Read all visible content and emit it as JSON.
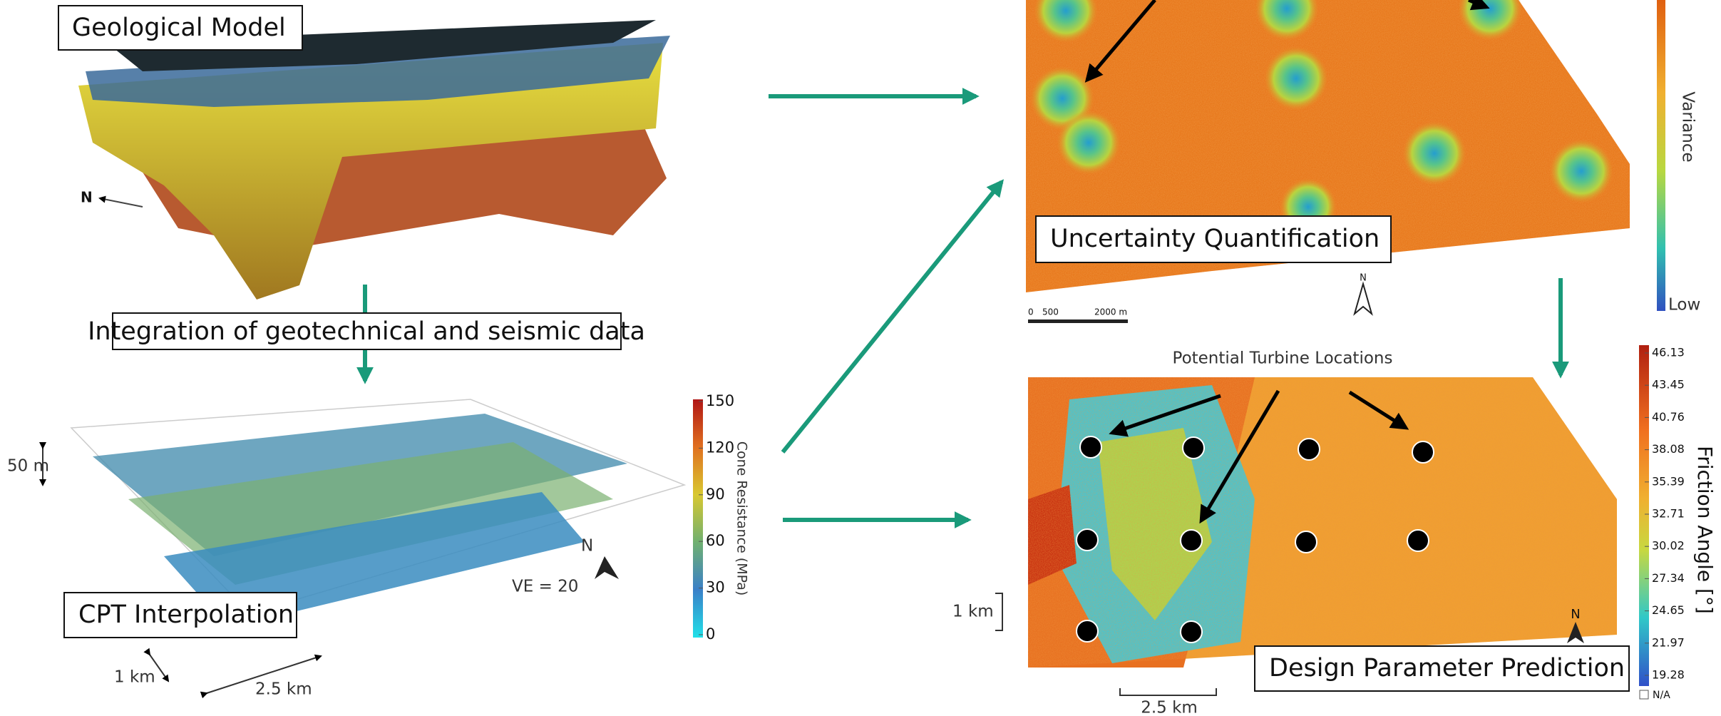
{
  "geological_model": {
    "title": "Geological Model",
    "north": "N"
  },
  "integration": "Integration of geotechnical and seismic data",
  "cpt": {
    "title": "CPT Interpolation",
    "scale_vertical": "50 m",
    "scale_1": "1 km",
    "scale_2": "2.5 km",
    "exaggeration": "VE = 20",
    "north": "N",
    "colorbar": {
      "label": "Cone Resistance (MPa)",
      "ticks": [
        "150",
        "120",
        "90",
        "60",
        "30",
        "0"
      ]
    }
  },
  "uncertainty": {
    "title": "Uncertainty Quantification",
    "north": "N",
    "scale": [
      "0",
      "500",
      "2000 m"
    ],
    "colorbar": {
      "label": "Variance",
      "low": "Low"
    }
  },
  "design": {
    "title": "Design Parameter Prediction",
    "annotation": "Potential Turbine Locations",
    "north": "N",
    "scale_1": "1 km",
    "scale_2": "2.5 km",
    "colorbar": {
      "label": "Friction Angle [°]",
      "ticks": [
        "46.13",
        "43.45",
        "40.76",
        "38.08",
        "35.39",
        "32.71",
        "30.02",
        "27.34",
        "24.65",
        "21.97",
        "19.28"
      ],
      "na": "N/A"
    }
  }
}
